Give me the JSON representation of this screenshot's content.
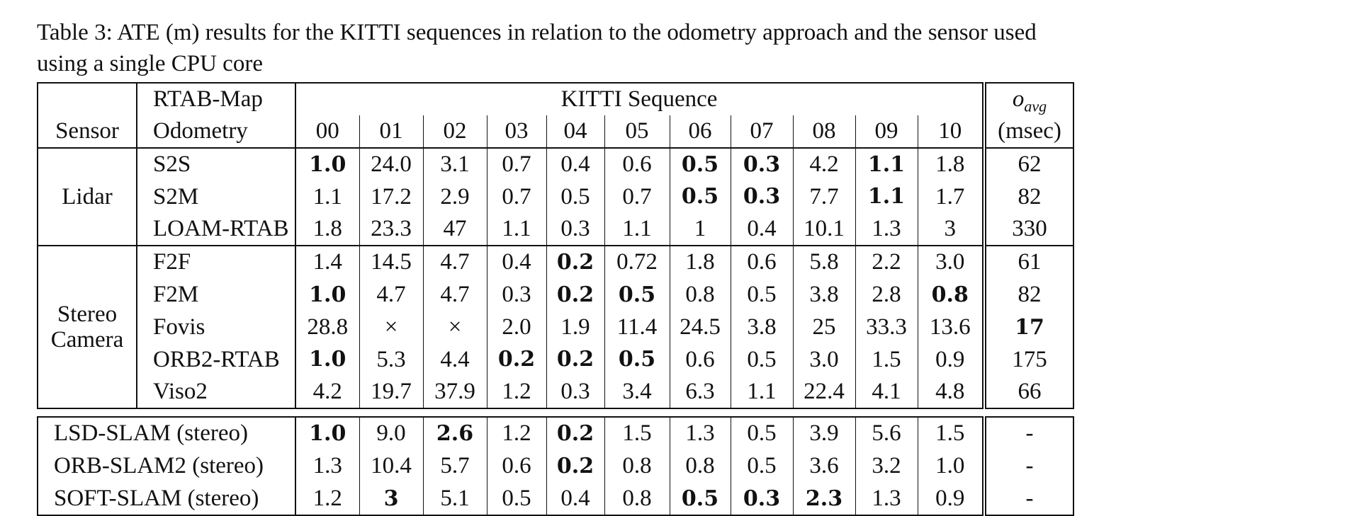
{
  "caption": {
    "line1": "Table 3: ATE (m) results for the KITTI sequences in relation to the odometry approach and the sensor used",
    "line2": "using a single CPU core"
  },
  "header": {
    "sensor": "Sensor",
    "rtabmap": "RTAB-Map",
    "odometry": "Odometry",
    "kitti": "KITTI Sequence",
    "oavg_base": "o",
    "oavg_sub": "avg",
    "msec": "(msec)",
    "sequences": [
      "00",
      "01",
      "02",
      "03",
      "04",
      "05",
      "06",
      "07",
      "08",
      "09",
      "10"
    ]
  },
  "groups": [
    {
      "sensor_lines": [
        "Lidar"
      ],
      "rows": [
        {
          "method": "S2S",
          "values": [
            "1.0",
            "24.0",
            "3.1",
            "0.7",
            "0.4",
            "0.6",
            "0.5",
            "0.3",
            "4.2",
            "1.1",
            "1.8"
          ],
          "bold": [
            0,
            6,
            7,
            9
          ],
          "oavg": "62",
          "oavg_bold": false
        },
        {
          "method": "S2M",
          "values": [
            "1.1",
            "17.2",
            "2.9",
            "0.7",
            "0.5",
            "0.7",
            "0.5",
            "0.3",
            "7.7",
            "1.1",
            "1.7"
          ],
          "bold": [
            6,
            7,
            9
          ],
          "oavg": "82",
          "oavg_bold": false
        },
        {
          "method": "LOAM-RTAB",
          "values": [
            "1.8",
            "23.3",
            "47",
            "1.1",
            "0.3",
            "1.1",
            "1",
            "0.4",
            "10.1",
            "1.3",
            "3"
          ],
          "bold": [],
          "oavg": "330",
          "oavg_bold": false
        }
      ]
    },
    {
      "sensor_lines": [
        "Stereo",
        "Camera"
      ],
      "rows": [
        {
          "method": "F2F",
          "values": [
            "1.4",
            "14.5",
            "4.7",
            "0.4",
            "0.2",
            "0.72",
            "1.8",
            "0.6",
            "5.8",
            "2.2",
            "3.0"
          ],
          "bold": [
            4
          ],
          "oavg": "61",
          "oavg_bold": false
        },
        {
          "method": "F2M",
          "values": [
            "1.0",
            "4.7",
            "4.7",
            "0.3",
            "0.2",
            "0.5",
            "0.8",
            "0.5",
            "3.8",
            "2.8",
            "0.8"
          ],
          "bold": [
            0,
            4,
            5,
            10
          ],
          "oavg": "82",
          "oavg_bold": false
        },
        {
          "method": "Fovis",
          "values": [
            "28.8",
            "×",
            "×",
            "2.0",
            "1.9",
            "11.4",
            "24.5",
            "3.8",
            "25",
            "33.3",
            "13.6"
          ],
          "bold": [],
          "oavg": "17",
          "oavg_bold": true
        },
        {
          "method": "ORB2-RTAB",
          "values": [
            "1.0",
            "5.3",
            "4.4",
            "0.2",
            "0.2",
            "0.5",
            "0.6",
            "0.5",
            "3.0",
            "1.5",
            "0.9"
          ],
          "bold": [
            0,
            3,
            4,
            5
          ],
          "oavg": "175",
          "oavg_bold": false
        },
        {
          "method": "Viso2",
          "values": [
            "4.2",
            "19.7",
            "37.9",
            "1.2",
            "0.3",
            "3.4",
            "6.3",
            "1.1",
            "22.4",
            "4.1",
            "4.8"
          ],
          "bold": [],
          "oavg": "66",
          "oavg_bold": false
        }
      ]
    }
  ],
  "others": [
    {
      "method": "LSD-SLAM (stereo)",
      "values": [
        "1.0",
        "9.0",
        "2.6",
        "1.2",
        "0.2",
        "1.5",
        "1.3",
        "0.5",
        "3.9",
        "5.6",
        "1.5"
      ],
      "bold": [
        0,
        2,
        4
      ],
      "oavg": "-"
    },
    {
      "method": "ORB-SLAM2 (stereo)",
      "values": [
        "1.3",
        "10.4",
        "5.7",
        "0.6",
        "0.2",
        "0.8",
        "0.8",
        "0.5",
        "3.6",
        "3.2",
        "1.0"
      ],
      "bold": [
        4
      ],
      "oavg": "-"
    },
    {
      "method": "SOFT-SLAM (stereo)",
      "values": [
        "1.2",
        "3",
        "5.1",
        "0.5",
        "0.4",
        "0.8",
        "0.5",
        "0.3",
        "2.3",
        "1.3",
        "0.9"
      ],
      "bold": [
        1,
        6,
        7,
        8
      ],
      "oavg": "-"
    }
  ]
}
